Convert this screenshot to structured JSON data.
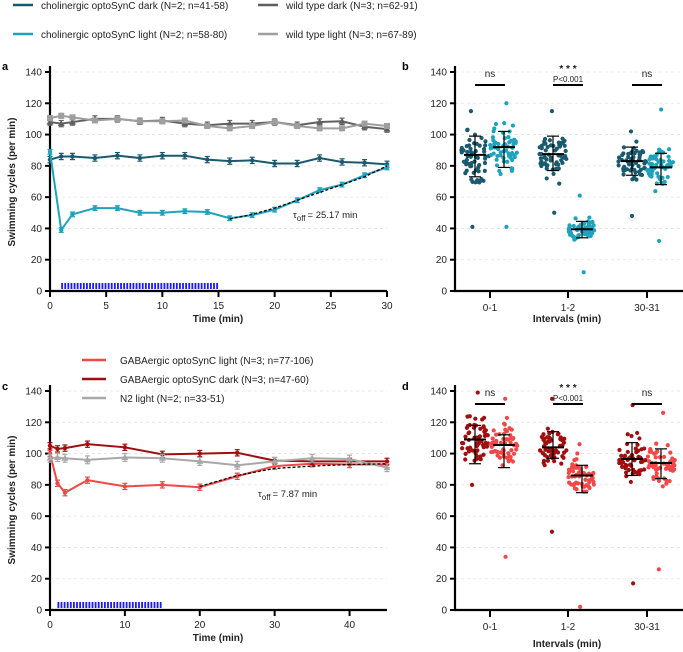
{
  "chart_data": [
    {
      "panel": "a",
      "type": "line",
      "xlabel": "Time (min)",
      "ylabel": "Swimming cycles (per min)",
      "xlim": [
        0,
        30
      ],
      "ylim": [
        0,
        140
      ],
      "xticks": [
        0,
        5,
        10,
        15,
        20,
        25,
        30
      ],
      "yticks": [
        0,
        20,
        40,
        60,
        80,
        100,
        120,
        140
      ],
      "grid": "horizontal dashed",
      "legend_position": "top",
      "series": [
        {
          "name": "cholinergic optoSynC dark (N=2; n=41-58)",
          "color": "#1a5a6e",
          "marker": "circle",
          "x": [
            0,
            1,
            2,
            4,
            6,
            8,
            10,
            12,
            14,
            16,
            18,
            20,
            22,
            24,
            26,
            28,
            30
          ],
          "y": [
            84,
            86,
            86,
            85,
            86.5,
            85,
            86.5,
            86.5,
            84,
            83,
            83.5,
            81.5,
            81.5,
            85,
            82.5,
            82,
            81
          ],
          "err": 2
        },
        {
          "name": "wild type dark (N=3; n=62-91)",
          "color": "#606060",
          "marker": "triangle",
          "x": [
            0,
            1,
            2,
            4,
            6,
            8,
            10,
            12,
            14,
            16,
            18,
            20,
            22,
            24,
            26,
            28,
            30
          ],
          "y": [
            108,
            107,
            108,
            110,
            110,
            108.5,
            109,
            107,
            106,
            107,
            107,
            108,
            106,
            108,
            108.5,
            105,
            103.5
          ],
          "err": 2
        },
        {
          "name": "cholinergic optoSynC light (N=2; n=58-80)",
          "color": "#1fa3bd",
          "marker": "circle",
          "x": [
            0,
            1,
            2,
            4,
            6,
            8,
            10,
            12,
            14,
            16,
            18,
            20,
            22,
            24,
            26,
            28,
            30
          ],
          "y": [
            89,
            39,
            49,
            53,
            53,
            50,
            50,
            51,
            50.5,
            46.5,
            48.5,
            52,
            58,
            64.5,
            68,
            74,
            79
          ],
          "err": 1.5
        },
        {
          "name": "wild type light (N=3; n=67-89)",
          "color": "#9e9e9e",
          "marker": "square",
          "x": [
            0,
            1,
            2,
            4,
            6,
            8,
            10,
            12,
            14,
            16,
            18,
            20,
            22,
            24,
            26,
            28,
            30
          ],
          "y": [
            110.5,
            112,
            111,
            109,
            110,
            108.5,
            108.5,
            109,
            105.5,
            104,
            105.5,
            108,
            105.5,
            104,
            104,
            107,
            105.5
          ],
          "err": 1.5
        }
      ],
      "fit": {
        "label": "τoff = 25.17 min",
        "tau_prefix": "τ",
        "tau_sub": "off",
        "tau_value": "= 25.17 min",
        "x": [
          16,
          18,
          20,
          22,
          24,
          26,
          28,
          30
        ],
        "y": [
          46,
          49,
          53,
          58,
          63,
          68,
          73,
          80
        ]
      },
      "light_stimulus": {
        "from": 1,
        "to": 15,
        "color": "#1a1aff"
      }
    },
    {
      "panel": "b",
      "type": "scatter",
      "xlabel": "Intervals (min)",
      "ylim": [
        0,
        140
      ],
      "yticks": [
        0,
        20,
        40,
        60,
        80,
        100,
        120,
        140
      ],
      "categories": [
        "0-1",
        "1-2",
        "30-31"
      ],
      "groups": [
        {
          "category": "0-1",
          "condition": "dark",
          "color": "#1a5a6e",
          "mean": 87,
          "sd": [
            73,
            99
          ],
          "min": 41,
          "max": 115
        },
        {
          "category": "0-1",
          "condition": "light",
          "color": "#1fa3bd",
          "mean": 92,
          "sd": [
            79,
            102
          ],
          "min": 41,
          "max": 120
        },
        {
          "category": "1-2",
          "condition": "dark",
          "color": "#1a5a6e",
          "mean": 87.5,
          "sd": [
            77,
            99
          ],
          "min": 50,
          "max": 115
        },
        {
          "category": "1-2",
          "condition": "light",
          "color": "#1fa3bd",
          "mean": 39.5,
          "sd": [
            34,
            44.5
          ],
          "min": 12,
          "max": 61
        },
        {
          "category": "30-31",
          "condition": "dark",
          "color": "#1a5a6e",
          "mean": 83,
          "sd": [
            74,
            92
          ],
          "min": 48,
          "max": 102
        },
        {
          "category": "30-31",
          "condition": "light",
          "color": "#1fa3bd",
          "mean": 79,
          "sd": [
            68,
            88
          ],
          "min": 32,
          "max": 116
        }
      ],
      "significance": [
        {
          "category": "0-1",
          "label": "ns"
        },
        {
          "category": "1-2",
          "label": "* * *",
          "p": "P<0.001"
        },
        {
          "category": "30-31",
          "label": "ns"
        }
      ]
    },
    {
      "panel": "c",
      "type": "line",
      "xlabel": "Time (min)",
      "ylabel": "Swimming cycles (per min)",
      "xlim": [
        0,
        45
      ],
      "ylim": [
        0,
        140
      ],
      "xticks": [
        0,
        10,
        20,
        30,
        40
      ],
      "yticks": [
        0,
        20,
        40,
        60,
        80,
        100,
        120,
        140
      ],
      "grid": "horizontal dashed",
      "legend_position": "top",
      "series": [
        {
          "name": "GABAergic optoSynC light (N=3; n=77-106)",
          "color": "#f04848",
          "marker": "circle",
          "x": [
            0,
            1,
            2,
            5,
            10,
            15,
            20,
            25,
            30,
            35,
            40,
            45
          ],
          "y": [
            100,
            81,
            75,
            83,
            79,
            80,
            78.5,
            85.5,
            92,
            93.5,
            93,
            93
          ],
          "err": 2
        },
        {
          "name": "GABAergic optoSynC dark (N=3; n=47-60)",
          "color": "#a00f0f",
          "marker": "circle",
          "x": [
            0,
            1,
            2,
            5,
            10,
            15,
            20,
            25,
            30,
            35,
            40,
            45
          ],
          "y": [
            105,
            103,
            103.5,
            106,
            104,
            99.5,
            100,
            100.5,
            95.5,
            95,
            95,
            95
          ],
          "err": 2
        },
        {
          "name": "N2 light (N=2; n=33-51)",
          "color": "#a8a8a8",
          "marker": "triangle",
          "x": [
            0,
            1,
            2,
            5,
            10,
            15,
            20,
            25,
            30,
            35,
            40,
            45
          ],
          "y": [
            97,
            97.5,
            97,
            96,
            97.5,
            97,
            95,
            92.5,
            95,
            97,
            96.5,
            91
          ],
          "err": 2.5
        }
      ],
      "fit": {
        "label": "τoff = 7.87 min",
        "tau_prefix": "τ",
        "tau_sub": "off",
        "tau_value": "= 7.87 min",
        "x": [
          20,
          25,
          30,
          35,
          40,
          45
        ],
        "y": [
          79,
          86,
          90.5,
          92,
          93,
          93.5
        ]
      },
      "light_stimulus": {
        "from": 1,
        "to": 15,
        "color": "#1a1aff"
      }
    },
    {
      "panel": "d",
      "type": "scatter",
      "xlabel": "Intervals (min)",
      "ylim": [
        0,
        140
      ],
      "yticks": [
        0,
        20,
        40,
        60,
        80,
        100,
        120,
        140
      ],
      "categories": [
        "0-1",
        "1-2",
        "30-31"
      ],
      "groups": [
        {
          "category": "0-1",
          "condition": "dark",
          "color": "#a00f0f",
          "mean": 109,
          "sd": [
            93.5,
            118
          ],
          "min": 80,
          "max": 139
        },
        {
          "category": "0-1",
          "condition": "light",
          "color": "#f04848",
          "mean": 105.5,
          "sd": [
            91,
            112
          ],
          "min": 34,
          "max": 135
        },
        {
          "category": "1-2",
          "condition": "dark",
          "color": "#a00f0f",
          "mean": 104,
          "sd": [
            97,
            114
          ],
          "min": 50,
          "max": 135
        },
        {
          "category": "1-2",
          "condition": "light",
          "color": "#f04848",
          "mean": 86,
          "sd": [
            75,
            92.5
          ],
          "min": 2,
          "max": 106
        },
        {
          "category": "30-31",
          "condition": "dark",
          "color": "#a00f0f",
          "mean": 96.5,
          "sd": [
            86,
            107
          ],
          "min": 17,
          "max": 131
        },
        {
          "category": "30-31",
          "condition": "light",
          "color": "#f04848",
          "mean": 94,
          "sd": [
            84,
            103
          ],
          "min": 26,
          "max": 126
        }
      ],
      "significance": [
        {
          "category": "0-1",
          "label": "ns"
        },
        {
          "category": "1-2",
          "label": "* * *",
          "p": "P<0.001"
        },
        {
          "category": "30-31",
          "label": "ns"
        }
      ]
    }
  ],
  "panel_labels": [
    "a",
    "b",
    "c",
    "d"
  ],
  "legend_top": [
    {
      "label": "cholinergic optoSynC dark (N=2; n=41-58)",
      "color": "#1a5a6e"
    },
    {
      "label": "wild type dark (N=3; n=62-91)",
      "color": "#606060"
    },
    {
      "label": "cholinergic optoSynC light (N=2; n=58-80)",
      "color": "#1fa3bd"
    },
    {
      "label": "wild type light (N=3; n=67-89)",
      "color": "#9e9e9e"
    }
  ],
  "legend_c": [
    {
      "label": "GABAergic optoSynC light (N=3; n=77-106)",
      "color": "#f04848"
    },
    {
      "label": "GABAergic optoSynC dark (N=3; n=47-60)",
      "color": "#a00f0f"
    },
    {
      "label": "N2 light (N=2; n=33-51)",
      "color": "#a8a8a8"
    }
  ]
}
